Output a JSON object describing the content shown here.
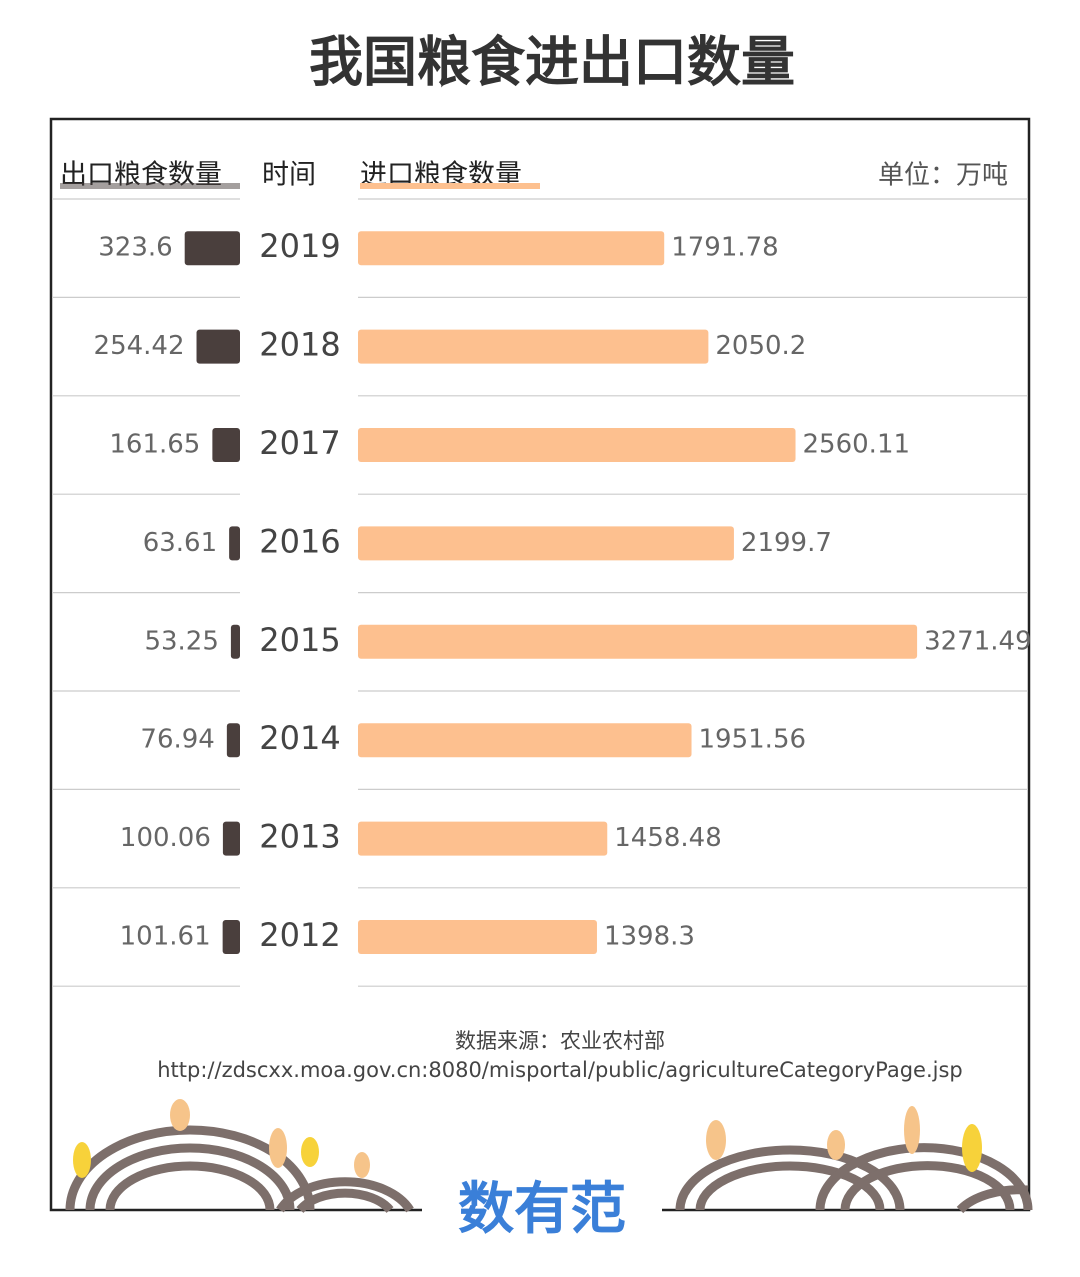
{
  "chart_data": {
    "type": "diverging-bar",
    "title": "我国粮食进出口数量",
    "category_label": "时间",
    "unit": "单位：万吨",
    "categories": [
      "2019",
      "2018",
      "2017",
      "2016",
      "2015",
      "2014",
      "2013",
      "2012"
    ],
    "series": [
      {
        "name": "出口粮食数量",
        "color": "#4a3f3d",
        "values": [
          323.6,
          254.42,
          161.65,
          63.61,
          53.25,
          76.94,
          100.06,
          101.61
        ]
      },
      {
        "name": "进口粮食数量",
        "color": "#fdc08f",
        "values": [
          1791.78,
          2050.2,
          2560.11,
          2199.7,
          3271.49,
          1951.56,
          1458.48,
          1398.3
        ]
      }
    ],
    "source": "数据来源：农业农村部",
    "source_url": "http://zdscxx.moa.gov.cn:8080/misportal/public/agricultureCategoryPage.jsp",
    "brand": "数有范"
  }
}
